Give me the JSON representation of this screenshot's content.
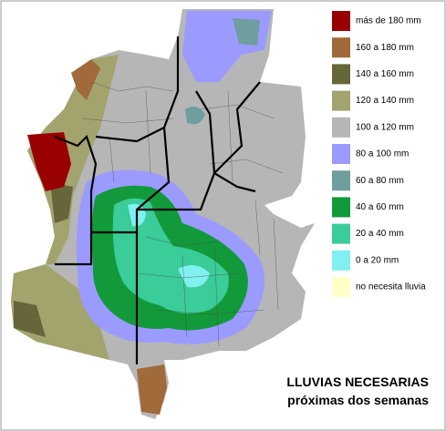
{
  "legend": {
    "items": [
      {
        "label": "más de 180 mm",
        "color": "#990000"
      },
      {
        "label": "160 a 180 mm",
        "color": "#a06a3a"
      },
      {
        "label": "140 a 160 mm",
        "color": "#66663a"
      },
      {
        "label": "120 a 140 mm",
        "color": "#a3a36e"
      },
      {
        "label": "100 a 120 mm",
        "color": "#b6b6b6"
      },
      {
        "label": "80 a 100 mm",
        "color": "#9b9bff"
      },
      {
        "label": "60 a 80 mm",
        "color": "#6e9e9e"
      },
      {
        "label": "40 a 60 mm",
        "color": "#129a3a"
      },
      {
        "label": "20 a 40 mm",
        "color": "#3acc99"
      },
      {
        "label": "0 a 20 mm",
        "color": "#80f0f0"
      },
      {
        "label": "no necesita lluvia",
        "color": "#ffffc8"
      }
    ]
  },
  "title": {
    "line1": "LLUVIAS NECESARIAS",
    "line2": "próximas dos semanas"
  }
}
